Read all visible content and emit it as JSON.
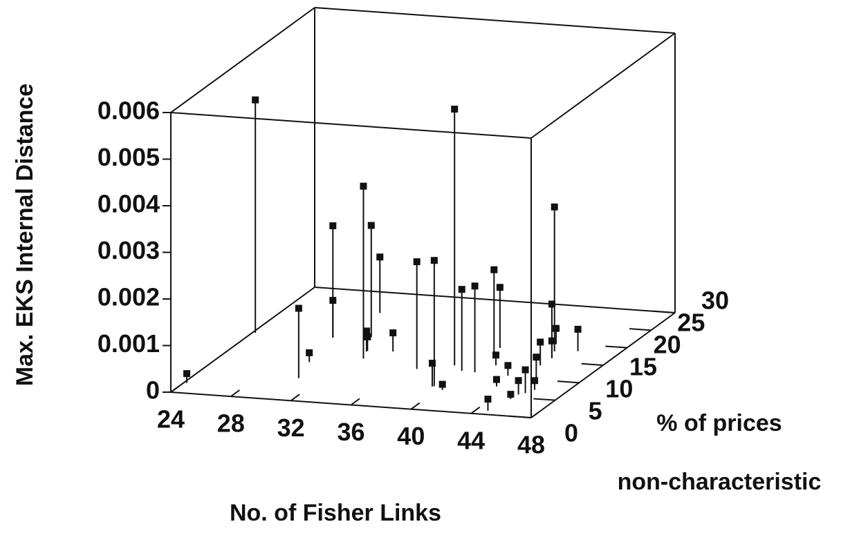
{
  "chart_data": {
    "type": "scatter3d",
    "ylabel": "Max. EKS Internal Distance",
    "xlabel": "No. of Fisher Links",
    "zlabel": [
      "% of prices",
      "non-characteristic"
    ],
    "xlim": [
      24,
      48
    ],
    "xticks": [
      24,
      28,
      32,
      36,
      40,
      44,
      48
    ],
    "zlim": [
      0,
      30
    ],
    "zticks": [
      0,
      5,
      10,
      15,
      20,
      25,
      30
    ],
    "ylim": [
      0,
      0.006
    ],
    "yticks": [
      0,
      0.001,
      0.002,
      0.003,
      0.004,
      0.005,
      0.006
    ],
    "color": "#111111",
    "x": [
      24.2,
      39.0,
      32.9,
      31.6,
      29.3,
      30.1,
      43.9,
      37.0,
      39.5,
      30.6,
      29.3,
      29.9,
      24.2,
      32.5,
      32.5,
      34.1,
      39.9,
      40.8,
      40.8,
      40.3,
      44.3,
      39.4,
      40.3,
      41.5,
      43.1,
      43.3,
      45.3,
      45.2,
      44.8,
      45.6,
      45.9,
      45.4,
      44.2,
      44.3,
      43.4,
      45.3
    ],
    "z": [
      17.0,
      12.2,
      12.3,
      18.0,
      17.2,
      24.5,
      17.7,
      10.6,
      6.4,
      6.0,
      17.2,
      10.4,
      2.7,
      14.2,
      14.4,
      14.7,
      10.9,
      10.8,
      14.8,
      17.6,
      15.9,
      6.3,
      5.6,
      13.0,
      10.5,
      7.5,
      5.8,
      4.5,
      1.0,
      6.3,
      7.3,
      9.2,
      13.8,
      15.9,
      19.6,
      18.2
    ],
    "y": [
      0.005,
      0.0055,
      0.0037,
      0.0024,
      0.0024,
      0.0012,
      0.0031,
      0.0023,
      0.0027,
      0.0015,
      0.0008,
      0.0002,
      0.0002,
      0.00044,
      0.0003,
      0.0004,
      0.00175,
      0.00185,
      0.0019,
      0.0013,
      0.00116,
      0.0005,
      0.00012,
      0.00022,
      0.00022,
      0.00015,
      0.0003,
      0.0001,
      0.00025,
      0.0005,
      0.0002,
      0.00055,
      0.0005,
      0.00037,
      0.00034,
      0.00047
    ]
  }
}
